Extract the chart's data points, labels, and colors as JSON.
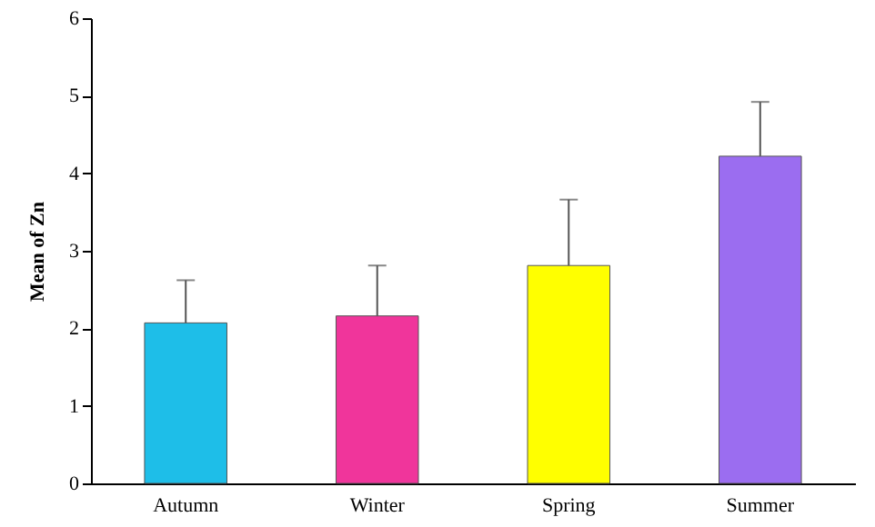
{
  "chart_data": {
    "type": "bar",
    "ylabel": "Mean of Zn",
    "categories": [
      "Autumn",
      "Winter",
      "Spring",
      "Summer"
    ],
    "values": [
      2.07,
      2.16,
      2.81,
      4.22
    ],
    "errors": [
      [
        2.07,
        2.62
      ],
      [
        2.16,
        2.81
      ],
      [
        2.81,
        3.66
      ],
      [
        4.22,
        4.92
      ]
    ],
    "colors": [
      "#1ebee8",
      "#f0359b",
      "#ffff00",
      "#9b6df0"
    ],
    "ylim": [
      0,
      6
    ],
    "yticks": [
      0,
      1,
      2,
      3,
      4,
      5,
      6
    ],
    "grid": false
  }
}
